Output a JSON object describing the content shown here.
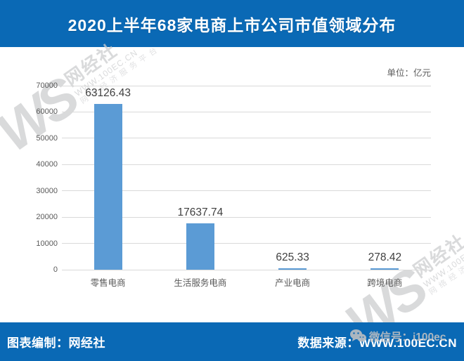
{
  "header": {
    "title": "2020上半年68家电商上市公司市值领域分布"
  },
  "chart": {
    "unit_label": "单位：亿元"
  },
  "chart_data": {
    "type": "bar",
    "title": "2020上半年68家电商上市公司市值领域分布",
    "categories": [
      "零售电商",
      "生活服务电商",
      "产业电商",
      "跨境电商"
    ],
    "values": [
      63126.43,
      17637.74,
      625.33,
      278.42
    ],
    "value_labels": [
      "63126.43",
      "17637.74",
      "625.33",
      "278.42"
    ],
    "unit": "亿元",
    "xlabel": "",
    "ylabel": "",
    "ylim": [
      0,
      70000
    ],
    "ytick_step": 10000,
    "grid": true,
    "legend": false,
    "bar_color": "#5b9bd5"
  },
  "footer": {
    "left": "图表编制：网经社",
    "right": "数据来源：WWW.100EC.CN"
  },
  "watermarks": {
    "brand_short": "WS",
    "brand_name": "网经社",
    "brand_url": "WWW.100EC.CN",
    "brand_tagline": "网络经济服务平台",
    "wechat_label": "微信号：i100ec"
  },
  "colors": {
    "banner_blue": "#0a69b5",
    "bar_blue": "#5b9bd5",
    "grid_gray": "#d9d9d9",
    "axis_text": "#595959"
  }
}
